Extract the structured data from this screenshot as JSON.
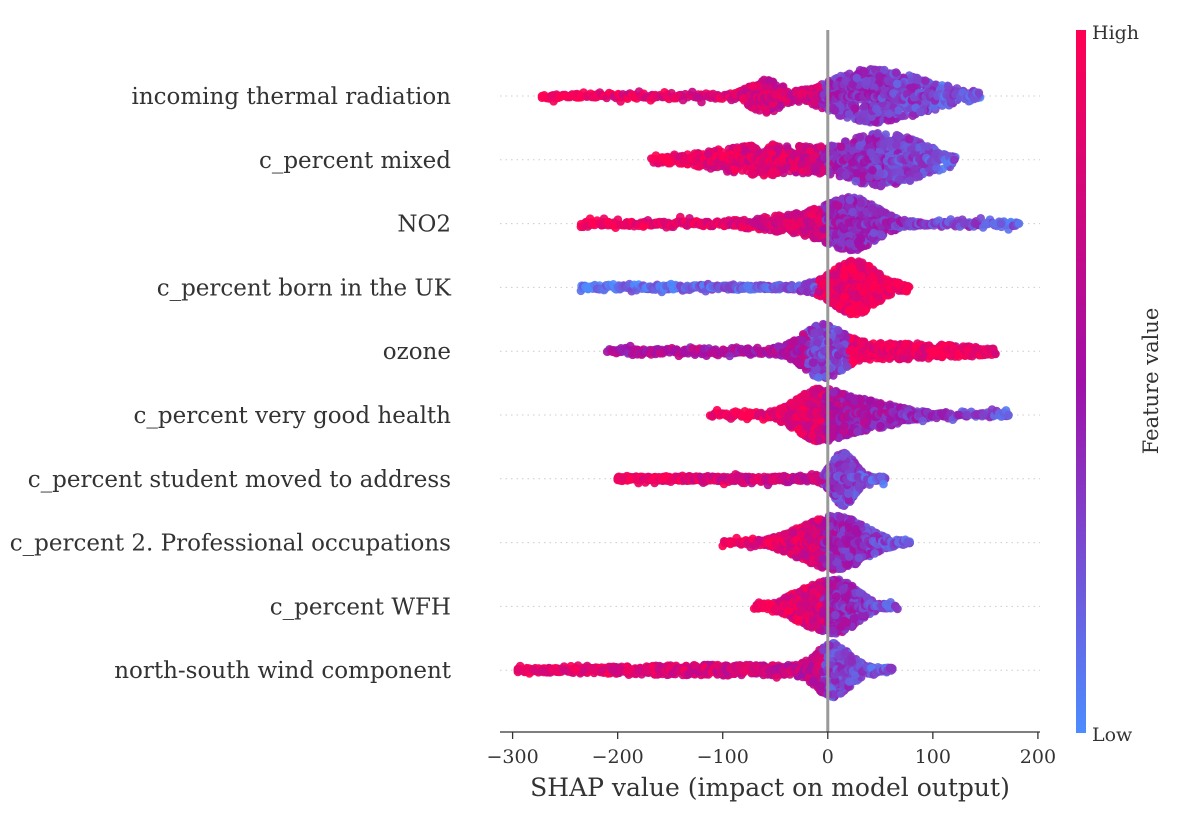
{
  "chart_data": {
    "type": "scatter",
    "subtype": "shap-beeswarm",
    "title": "",
    "xlabel": "SHAP value (impact on model output)",
    "ylabel": "",
    "xlim": [
      -312,
      202
    ],
    "xticks": [
      -300,
      -200,
      -100,
      0,
      100,
      200
    ],
    "xtick_labels": [
      "−300",
      "−200",
      "−100",
      "0",
      "100",
      "200"
    ],
    "grid": false,
    "zero_line": 0,
    "colorbar": {
      "label": "Feature value",
      "high_label": "High",
      "low_label": "Low",
      "high_color": "#ff0052",
      "mid_color": "#a010a8",
      "low_color": "#4c8cff"
    },
    "features": [
      {
        "name": "incoming thermal radiation",
        "min": -272,
        "max": 145,
        "peaks": [
          [
            -60,
            14,
            0.8
          ],
          [
            30,
            30,
            1.0
          ],
          [
            80,
            35,
            0.7
          ]
        ],
        "color_trend": "high_left_low_right",
        "sparse_left": [
          -272,
          -262,
          -255,
          -250,
          -246
        ]
      },
      {
        "name": "c_percent mixed",
        "min": -168,
        "max": 122,
        "peaks": [
          [
            -60,
            45,
            0.55
          ],
          [
            55,
            35,
            1.0
          ]
        ],
        "color_trend": "high_left_low_right",
        "sparse_left": []
      },
      {
        "name": "NO2",
        "min": -235,
        "max": 182,
        "peaks": [
          [
            -20,
            40,
            0.4
          ],
          [
            25,
            22,
            1.0
          ]
        ],
        "color_trend": "high_left_low_right",
        "sparse_left": [],
        "sparse_right": [
          130,
          140,
          150,
          158,
          165,
          182
        ]
      },
      {
        "name": "c_percent born in the UK",
        "min": -235,
        "max": 78,
        "peaks": [
          [
            25,
            20,
            1.0
          ]
        ],
        "color_trend": "low_left_high_right",
        "sparse_left": []
      },
      {
        "name": "ozone",
        "min": -210,
        "max": 160,
        "peaks": [
          [
            -5,
            18,
            1.0
          ],
          [
            60,
            60,
            0.3
          ]
        ],
        "color_trend": "low_center_high_right",
        "sparse_left": []
      },
      {
        "name": "c_percent very good health",
        "min": -112,
        "max": 172,
        "peaks": [
          [
            -10,
            20,
            1.0
          ],
          [
            35,
            30,
            0.6
          ]
        ],
        "color_trend": "high_left_low_right",
        "sparse_right": [
          125,
          132,
          140,
          148,
          172
        ]
      },
      {
        "name": "c_percent student moved to address",
        "min": -200,
        "max": 55,
        "peaks": [
          [
            15,
            10,
            1.0
          ]
        ],
        "color_trend": "high_left_low_right",
        "sparse_left": [
          -200,
          -195,
          -188
        ]
      },
      {
        "name": "c_percent 2. Professional occupations",
        "min": -100,
        "max": 78,
        "peaks": [
          [
            -10,
            25,
            1.0
          ],
          [
            20,
            22,
            0.9
          ]
        ],
        "color_trend": "high_left_low_right",
        "sparse_left": []
      },
      {
        "name": "c_percent WFH",
        "min": -70,
        "max": 68,
        "peaks": [
          [
            -15,
            20,
            0.9
          ],
          [
            15,
            16,
            1.0
          ]
        ],
        "color_trend": "high_left_low_right",
        "sparse_left": []
      },
      {
        "name": "north-south wind component",
        "min": -295,
        "max": 62,
        "peaks": [
          [
            5,
            15,
            1.0
          ],
          [
            -100,
            80,
            0.15
          ]
        ],
        "color_trend": "high_left_low_right",
        "sparse_left": [
          -295,
          -288,
          -280,
          -272,
          -262,
          -250,
          -240,
          -232,
          -222,
          -215,
          -205,
          -190,
          -180,
          -172
        ]
      }
    ]
  }
}
